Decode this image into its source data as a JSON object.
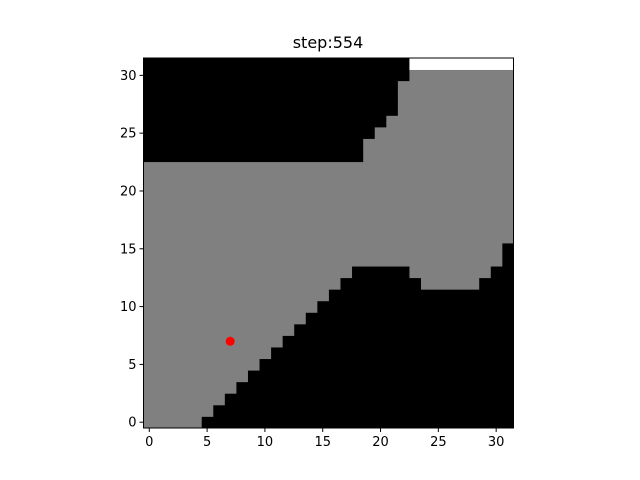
{
  "title": "step:554",
  "colors": {
    "free": "#808080",
    "wall": "#000000",
    "unknown": "#ffffff",
    "agent": "#ff0000"
  },
  "grid": {
    "size": 32,
    "rows": [
      {
        "y": 0,
        "free": [
          [
            0,
            4
          ]
        ]
      },
      {
        "y": 1,
        "free": [
          [
            0,
            5
          ]
        ]
      },
      {
        "y": 2,
        "free": [
          [
            0,
            6
          ]
        ]
      },
      {
        "y": 3,
        "free": [
          [
            0,
            7
          ]
        ]
      },
      {
        "y": 4,
        "free": [
          [
            0,
            8
          ]
        ]
      },
      {
        "y": 5,
        "free": [
          [
            0,
            9
          ]
        ]
      },
      {
        "y": 6,
        "free": [
          [
            0,
            10
          ]
        ]
      },
      {
        "y": 7,
        "free": [
          [
            0,
            11
          ]
        ]
      },
      {
        "y": 8,
        "free": [
          [
            0,
            12
          ]
        ]
      },
      {
        "y": 9,
        "free": [
          [
            0,
            13
          ]
        ]
      },
      {
        "y": 10,
        "free": [
          [
            0,
            14
          ]
        ]
      },
      {
        "y": 11,
        "free": [
          [
            0,
            15
          ]
        ]
      },
      {
        "y": 12,
        "free": [
          [
            0,
            16
          ],
          [
            24,
            28
          ]
        ]
      },
      {
        "y": 13,
        "free": [
          [
            0,
            17
          ],
          [
            23,
            29
          ]
        ]
      },
      {
        "y": 14,
        "free": [
          [
            0,
            30
          ]
        ]
      },
      {
        "y": 15,
        "free": [
          [
            0,
            30
          ]
        ]
      },
      {
        "y": 16,
        "free": [
          [
            0,
            31
          ]
        ]
      },
      {
        "y": 17,
        "free": [
          [
            0,
            31
          ]
        ]
      },
      {
        "y": 18,
        "free": [
          [
            0,
            31
          ]
        ]
      },
      {
        "y": 19,
        "free": [
          [
            0,
            31
          ]
        ]
      },
      {
        "y": 20,
        "free": [
          [
            0,
            31
          ]
        ]
      },
      {
        "y": 21,
        "free": [
          [
            0,
            31
          ]
        ]
      },
      {
        "y": 22,
        "free": [
          [
            0,
            31
          ]
        ]
      },
      {
        "y": 23,
        "free": [
          [
            19,
            31
          ]
        ]
      },
      {
        "y": 24,
        "free": [
          [
            19,
            31
          ]
        ]
      },
      {
        "y": 25,
        "free": [
          [
            20,
            31
          ]
        ]
      },
      {
        "y": 26,
        "free": [
          [
            21,
            31
          ]
        ]
      },
      {
        "y": 27,
        "free": [
          [
            22,
            31
          ]
        ]
      },
      {
        "y": 28,
        "free": [
          [
            22,
            31
          ]
        ]
      },
      {
        "y": 29,
        "free": [
          [
            22,
            31
          ]
        ]
      },
      {
        "y": 30,
        "free": [
          [
            23,
            31
          ]
        ]
      }
    ],
    "unknown": [
      {
        "y": 31,
        "cells": [
          [
            23,
            31
          ]
        ]
      }
    ]
  },
  "agent": {
    "x": 7,
    "y": 7
  },
  "x_ticks": [
    "0",
    "5",
    "10",
    "15",
    "20",
    "25",
    "30"
  ],
  "y_ticks": [
    "0",
    "5",
    "10",
    "15",
    "20",
    "25",
    "30"
  ]
}
